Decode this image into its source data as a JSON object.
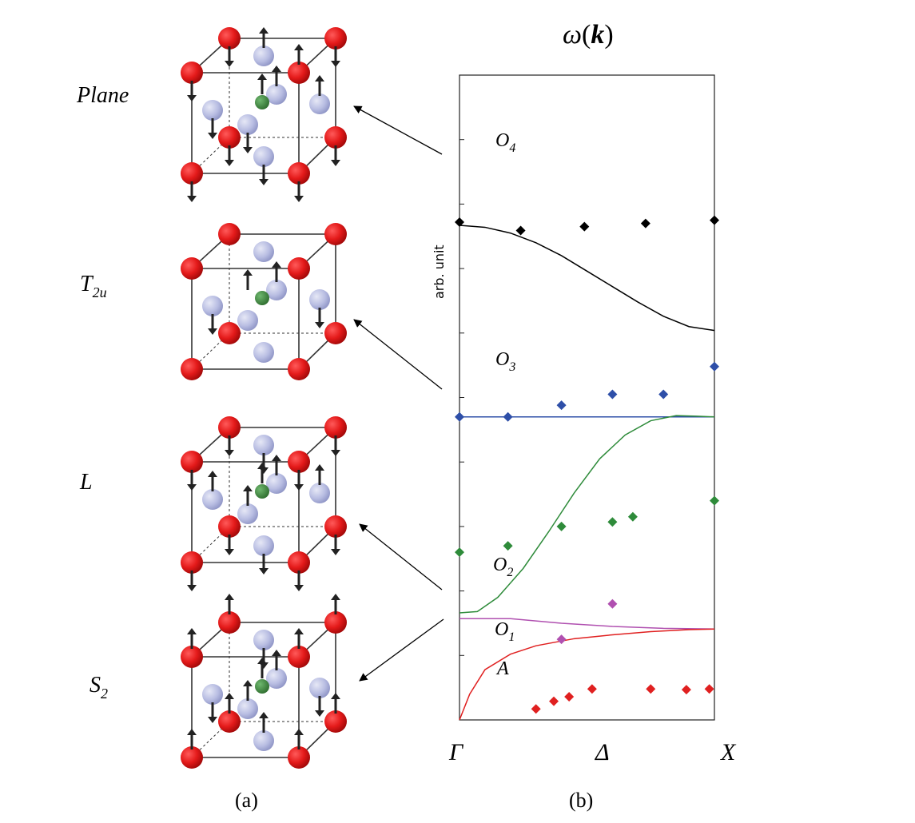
{
  "panel_a": {
    "caption": "(a)",
    "modes": [
      {
        "label_main": "Plane",
        "label_sub": ""
      },
      {
        "label_main": "T",
        "label_sub": "2u"
      },
      {
        "label_main": "L",
        "label_sub": ""
      },
      {
        "label_main": "S",
        "label_sub": "2"
      }
    ]
  },
  "panel_b": {
    "caption": "(b)",
    "title_omega": "ω",
    "title_k": "k",
    "title_paren_open": "(",
    "title_paren_close": ")",
    "ylabel": "arb. unit",
    "branch_labels": [
      {
        "main": "O",
        "sub": "4"
      },
      {
        "main": "O",
        "sub": "3"
      },
      {
        "main": "O",
        "sub": "2"
      },
      {
        "main": "O",
        "sub": "1"
      },
      {
        "main": "A",
        "sub": ""
      }
    ]
  },
  "chart_data": {
    "type": "scatter",
    "ylabel": "arb. unit",
    "x_ticks": [
      "Γ",
      "Δ",
      "X"
    ],
    "xlim": [
      0,
      1
    ],
    "ylim": [
      0,
      10
    ],
    "yticks": [
      1,
      2,
      3,
      4,
      5,
      6,
      7,
      8,
      9
    ],
    "colors": {
      "O4": "#000000",
      "O3": "#2e4fa8",
      "O2": "#2e8b3a",
      "O1": "#b050b0",
      "A": "#e02020"
    },
    "curves": [
      {
        "name": "O4",
        "x": [
          0,
          0.1,
          0.2,
          0.3,
          0.4,
          0.5,
          0.6,
          0.7,
          0.8,
          0.9,
          1.0
        ],
        "y": [
          7.67,
          7.64,
          7.55,
          7.4,
          7.2,
          6.96,
          6.72,
          6.48,
          6.26,
          6.1,
          6.04
        ]
      },
      {
        "name": "O3",
        "x": [
          0,
          1.0
        ],
        "y": [
          4.7,
          4.7
        ]
      },
      {
        "name": "O2",
        "x": [
          0,
          0.07,
          0.15,
          0.25,
          0.35,
          0.45,
          0.55,
          0.65,
          0.75,
          0.85,
          0.93,
          1.0
        ],
        "y": [
          1.66,
          1.68,
          1.9,
          2.35,
          2.92,
          3.52,
          4.05,
          4.42,
          4.64,
          4.72,
          4.71,
          4.7
        ]
      },
      {
        "name": "O1",
        "x": [
          0,
          0.2,
          0.4,
          0.6,
          0.8,
          1.0
        ],
        "y": [
          1.57,
          1.57,
          1.5,
          1.45,
          1.42,
          1.41
        ]
      },
      {
        "name": "A",
        "x": [
          0,
          0.04,
          0.1,
          0.2,
          0.3,
          0.45,
          0.6,
          0.75,
          0.9,
          1.0
        ],
        "y": [
          0,
          0.4,
          0.78,
          1.02,
          1.15,
          1.26,
          1.32,
          1.37,
          1.4,
          1.41
        ]
      }
    ],
    "points": [
      {
        "name": "O4",
        "x": [
          0,
          0.24,
          0.49,
          0.73,
          1.0
        ],
        "y": [
          7.72,
          7.59,
          7.65,
          7.7,
          7.75
        ]
      },
      {
        "name": "O3",
        "x": [
          0,
          0.19,
          0.4,
          0.6,
          0.8,
          1.0
        ],
        "y": [
          4.7,
          4.7,
          4.88,
          5.05,
          5.05,
          5.48
        ]
      },
      {
        "name": "O2",
        "x": [
          0,
          0.19,
          0.4,
          0.6,
          0.68,
          1.0
        ],
        "y": [
          2.6,
          2.7,
          3.0,
          3.07,
          3.15,
          3.4
        ]
      },
      {
        "name": "O1",
        "x": [
          0.4,
          0.6
        ],
        "y": [
          1.25,
          1.8
        ]
      },
      {
        "name": "A",
        "x": [
          0.3,
          0.37,
          0.43,
          0.52,
          0.75,
          0.89,
          0.98
        ],
        "y": [
          0.17,
          0.29,
          0.36,
          0.48,
          0.48,
          0.47,
          0.48
        ]
      }
    ]
  }
}
